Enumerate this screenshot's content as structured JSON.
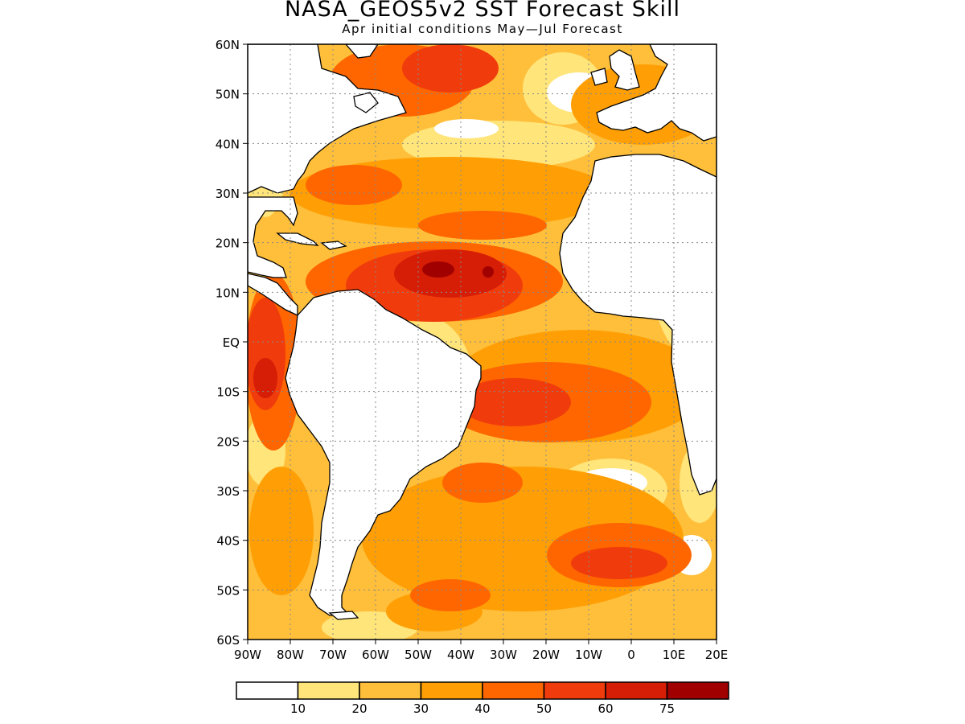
{
  "title": "NASA_GEOS5v2 SST Forecast Skill",
  "subtitle": "Apr initial conditions  May—Jul Forecast",
  "map": {
    "lon_range": [
      -90,
      20
    ],
    "lat_range": [
      -60,
      60
    ],
    "lat_labels": [
      "60N",
      "50N",
      "40N",
      "30N",
      "20N",
      "10N",
      "EQ",
      "10S",
      "20S",
      "30S",
      "40S",
      "50S",
      "60S"
    ],
    "lat_values": [
      60,
      50,
      40,
      30,
      20,
      10,
      0,
      -10,
      -20,
      -30,
      -40,
      -50,
      -60
    ],
    "lon_labels": [
      "90W",
      "80W",
      "70W",
      "60W",
      "50W",
      "40W",
      "30W",
      "20W",
      "10W",
      "0",
      "10E",
      "20E"
    ],
    "lon_values": [
      -90,
      -80,
      -70,
      -60,
      -50,
      -40,
      -30,
      -20,
      -10,
      0,
      10,
      20
    ],
    "grid": "dotted",
    "land_color": "#ffffff",
    "coast_color": "#000000"
  },
  "colorbar": {
    "levels": [
      "10",
      "20",
      "30",
      "40",
      "50",
      "60",
      "75"
    ],
    "colors": [
      "#ffffff",
      "#ffe57a",
      "#ffbf3b",
      "#ff9f05",
      "#ff6600",
      "#f03c0c",
      "#d61d06",
      "#a00000"
    ]
  }
}
